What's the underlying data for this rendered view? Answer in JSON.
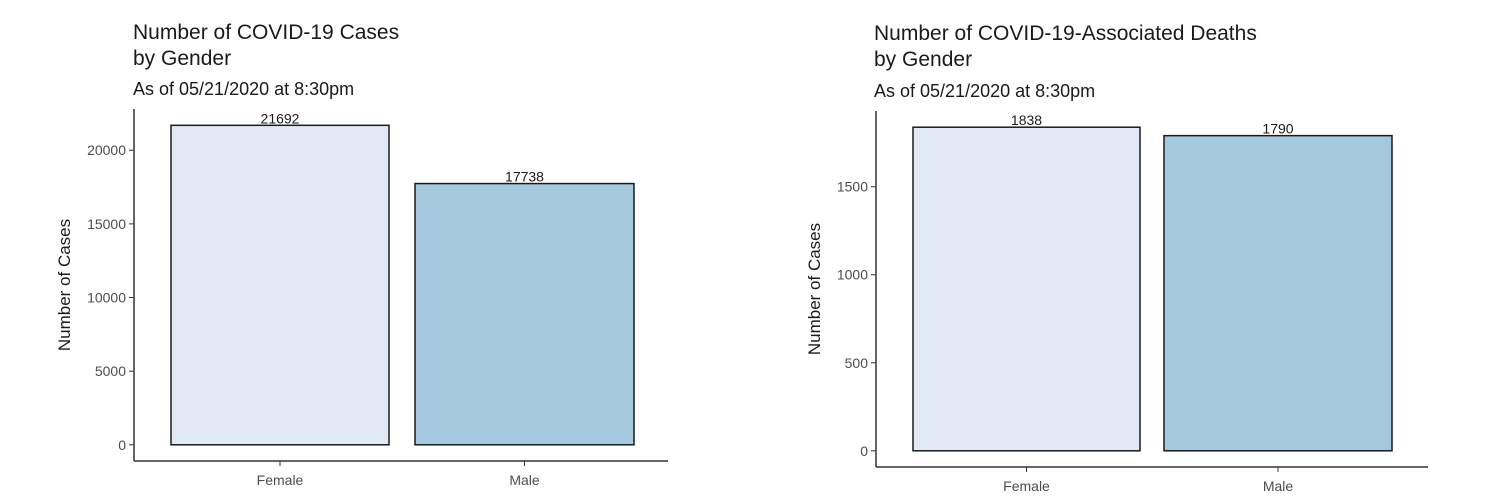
{
  "colors": {
    "female": "#e1eaf4",
    "male": "#a6c8df",
    "outline": "#1a1a1a",
    "axis": "#333333"
  },
  "chart_data": [
    {
      "type": "bar",
      "title": "Number of COVID-19 Cases\nby Gender",
      "subtitle": "As of 05/21/2020 at 8:30pm",
      "xlabel": "",
      "ylabel": "Number of Cases",
      "categories": [
        "Female",
        "Male"
      ],
      "values": [
        21692,
        17738
      ],
      "value_labels": [
        "21692",
        "17738"
      ],
      "yticks": [
        0,
        5000,
        10000,
        15000,
        20000
      ],
      "ylim": [
        -1100,
        22800
      ],
      "grid": false,
      "legend": "none"
    },
    {
      "type": "bar",
      "title": "Number of COVID-19-Associated Deaths\nby Gender",
      "subtitle": "As of 05/21/2020 at 8:30pm",
      "xlabel": "",
      "ylabel": "Number of Cases",
      "categories": [
        "Female",
        "Male"
      ],
      "values": [
        1838,
        1790
      ],
      "value_labels": [
        "1838",
        "1790"
      ],
      "yticks": [
        0,
        500,
        1000,
        1500
      ],
      "ylim": [
        -92,
        1930
      ],
      "grid": false,
      "legend": "none"
    }
  ]
}
